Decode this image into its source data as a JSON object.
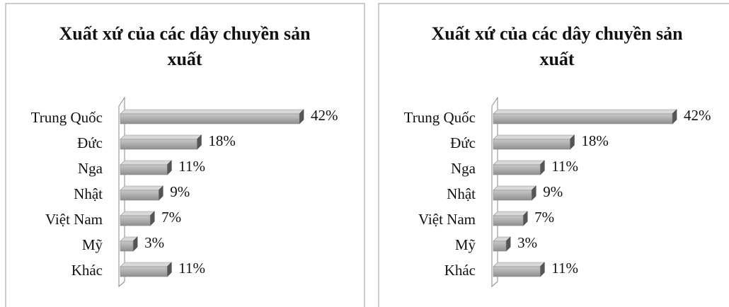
{
  "chart_data": [
    {
      "type": "bar",
      "orientation": "horizontal",
      "title": "Xuất xứ của các dây chuyền sản xuất",
      "categories": [
        "Trung Quốc",
        "Đức",
        "Nga",
        "Nhật",
        "Việt Nam",
        "Mỹ",
        "Khác"
      ],
      "values": [
        42,
        18,
        11,
        9,
        7,
        3,
        11
      ],
      "value_labels": [
        "42%",
        "18%",
        "11%",
        "9%",
        "7%",
        "3%",
        "11%"
      ],
      "color": "#a6a6a6"
    },
    {
      "type": "bar",
      "orientation": "horizontal",
      "title": "Xuất xứ của các dây chuyền sản xuất",
      "categories": [
        "Trung Quốc",
        "Đức",
        "Nga",
        "Nhật",
        "Việt Nam",
        "Mỹ",
        "Khác"
      ],
      "values": [
        42,
        18,
        11,
        9,
        7,
        3,
        11
      ],
      "value_labels": [
        "42%",
        "18%",
        "11%",
        "9%",
        "7%",
        "3%",
        "11%"
      ],
      "color": "#a6a6a6"
    }
  ]
}
